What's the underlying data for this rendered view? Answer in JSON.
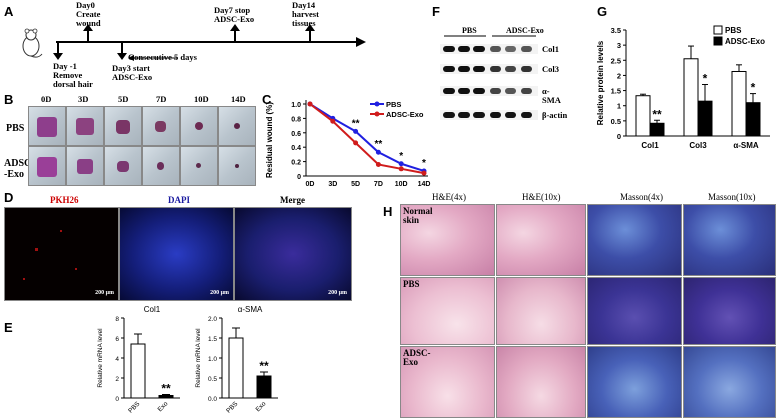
{
  "panels": {
    "A": "A",
    "B": "B",
    "C": "C",
    "D": "D",
    "E": "E",
    "F": "F",
    "G": "G",
    "H": "H"
  },
  "timeline": {
    "events": [
      {
        "id": "d0",
        "text": "Day0\nCreate\nwound"
      },
      {
        "id": "dm1",
        "text": "Day -1\nRemove\ndorsal hair"
      },
      {
        "id": "d3",
        "text": "Day3 start\nADSC-Exo"
      },
      {
        "id": "consec",
        "text": "Consecutive 5 days"
      },
      {
        "id": "d7",
        "text": "Day7 stop\nADSC-Exo"
      },
      {
        "id": "d14",
        "text": "Day14\nharvest\ntissues"
      }
    ]
  },
  "panel_b": {
    "days": [
      "0D",
      "3D",
      "5D",
      "7D",
      "10D",
      "14D"
    ],
    "rows": [
      "PBS",
      "ADSC\n-Exo"
    ]
  },
  "panel_d": {
    "titles": [
      "PKH26",
      "DAPI",
      "Merge"
    ],
    "title_colors": [
      "#cc0000",
      "#1a1aa0",
      "#000000"
    ],
    "scale": "200 μm"
  },
  "panel_h": {
    "columns": [
      "H&E(4x)",
      "H&E(10x)",
      "Masson(4x)",
      "Masson(10x)"
    ],
    "rows": [
      "Normal skin",
      "PBS",
      "ADSC-Exo"
    ]
  },
  "panel_f": {
    "groups": [
      "PBS",
      "ADSC-Exo"
    ],
    "proteins": [
      "Col1",
      "Col3",
      "α-SMA",
      "β-actin"
    ]
  },
  "chart_data": [
    {
      "panel": "C",
      "type": "line",
      "x": [
        "0D",
        "3D",
        "5D",
        "7D",
        "10D",
        "14D"
      ],
      "ylabel": "Residual wound (%)",
      "ylim": [
        0,
        1.0
      ],
      "yticks": [
        "0",
        "0.2",
        "0.4",
        "0.6",
        "0.8",
        "1.0"
      ],
      "series": [
        {
          "name": "PBS",
          "color": "#2020e0",
          "values": [
            1.0,
            0.8,
            0.62,
            0.33,
            0.17,
            0.07
          ]
        },
        {
          "name": "ADSC-Exo",
          "color": "#d01c1c",
          "values": [
            1.0,
            0.76,
            0.46,
            0.16,
            0.1,
            0.04
          ]
        }
      ],
      "annotations": [
        {
          "x": "5D",
          "text": "**"
        },
        {
          "x": "7D",
          "text": "**"
        },
        {
          "x": "10D",
          "text": "*"
        },
        {
          "x": "14D",
          "text": "*"
        }
      ],
      "legend": "top-right"
    },
    {
      "panel": "E-left",
      "type": "bar",
      "title": "Col1",
      "categories": [
        "PBS",
        "Exo"
      ],
      "values": [
        5.4,
        0.25
      ],
      "errors": [
        1.0,
        0.1
      ],
      "ylim": [
        0,
        8
      ],
      "yticks": [
        "0",
        "2",
        "4",
        "6",
        "8"
      ],
      "ylabel": "Relative mRNA level",
      "annotations": [
        {
          "category": "Exo",
          "text": "**"
        }
      ]
    },
    {
      "panel": "E-right",
      "type": "bar",
      "title": "α-SMA",
      "categories": [
        "PBS",
        "Exo"
      ],
      "values": [
        1.5,
        0.55
      ],
      "errors": [
        0.25,
        0.1
      ],
      "ylim": [
        0,
        2.0
      ],
      "yticks": [
        "0.0",
        "0.5",
        "1.0",
        "1.5",
        "2.0"
      ],
      "ylabel": "Relative mRNA level",
      "annotations": [
        {
          "category": "Exo",
          "text": "**"
        }
      ]
    },
    {
      "panel": "G",
      "type": "bar",
      "categories": [
        "Col1",
        "Col3",
        "α-SMA"
      ],
      "ylim": [
        0,
        3.5
      ],
      "yticks": [
        "0",
        "0.5",
        "1",
        "1.5",
        "2",
        "2.5",
        "3",
        "3.5"
      ],
      "ylabel": "Relative protein levels",
      "series": [
        {
          "name": "PBS",
          "color": "#ffffff",
          "values": [
            1.33,
            2.55,
            2.13
          ],
          "errors": [
            0.05,
            0.42,
            0.22
          ]
        },
        {
          "name": "ADSC-Exo",
          "color": "#000000",
          "values": [
            0.42,
            1.15,
            1.1
          ],
          "errors": [
            0.1,
            0.55,
            0.3
          ]
        }
      ],
      "annotations": [
        {
          "category": "Col1",
          "text": "**"
        },
        {
          "category": "Col3",
          "text": "*"
        },
        {
          "category": "α-SMA",
          "text": "*"
        }
      ],
      "legend": "top-right"
    }
  ]
}
